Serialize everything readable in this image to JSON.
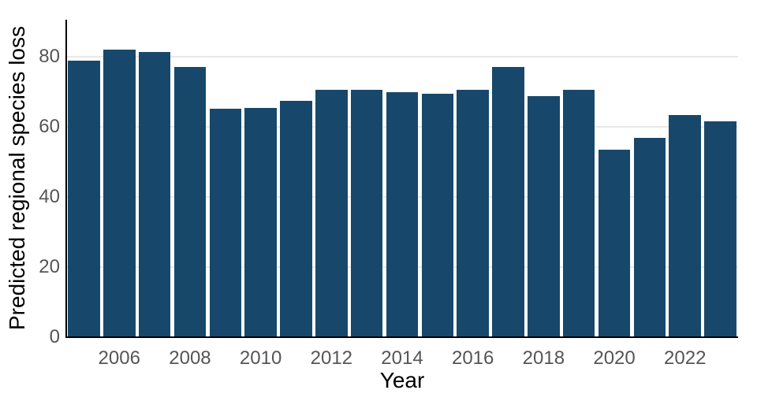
{
  "figure": {
    "background_color": "#ffffff",
    "title": ""
  },
  "chart_data": {
    "type": "bar",
    "title": "",
    "xlabel": "Year",
    "ylabel": "Predicted regional species loss",
    "categories": [
      2005,
      2006,
      2007,
      2008,
      2009,
      2010,
      2011,
      2012,
      2013,
      2014,
      2015,
      2016,
      2017,
      2018,
      2019,
      2020,
      2021,
      2022,
      2023
    ],
    "values": [
      79.0,
      82.0,
      81.4,
      77.1,
      65.1,
      65.4,
      67.5,
      70.7,
      70.7,
      70.0,
      69.5,
      70.5,
      77.1,
      68.9,
      70.5,
      53.4,
      56.9,
      63.4,
      61.6
    ],
    "x_tick_years": [
      2006,
      2008,
      2010,
      2012,
      2014,
      2016,
      2018,
      2020,
      2022
    ],
    "y_ticks": [
      0,
      20,
      40,
      60,
      80
    ],
    "ylim": [
      0,
      90.6
    ],
    "grid": "horizontal-only",
    "legend": "none",
    "bar_color": "#17486b",
    "gridline_color": "#e8e8e8",
    "spine_color": "#000000",
    "tick_label_color": "#555555",
    "axis_title_color": "#000000"
  }
}
